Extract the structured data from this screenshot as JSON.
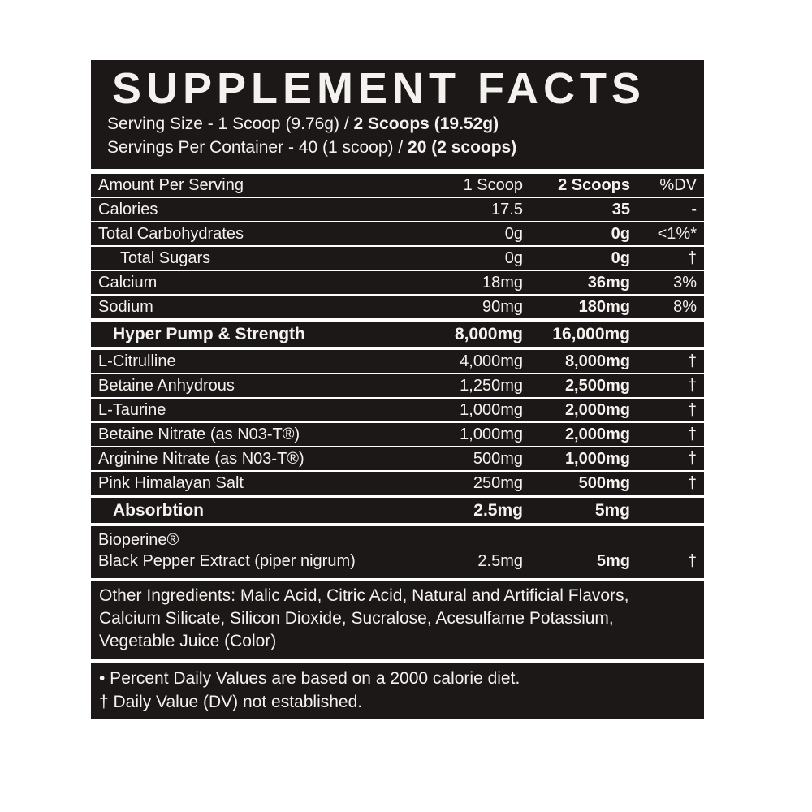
{
  "colors": {
    "panel": "#1c1818",
    "text": "#f4f2ee",
    "background": "#ffffff"
  },
  "label": {
    "title": "SUPPLEMENT FACTS",
    "serving_size_prefix": "Serving Size - 1 Scoop (9.76g) / ",
    "serving_size_bold": "2 Scoops (19.52g)",
    "servings_prefix": "Servings Per Container - 40 (1 scoop) / ",
    "servings_bold": "20 (2 scoops)",
    "columns": {
      "name": "Amount Per Serving",
      "scoop1": "1 Scoop",
      "scoop2": "2 Scoops",
      "dv": "%DV"
    },
    "nutrients": [
      {
        "name": "Calories",
        "scoop1": "17.5",
        "scoop2": "35",
        "dv": "-"
      },
      {
        "name": "Total Carbohydrates",
        "scoop1": "0g",
        "scoop2": "0g",
        "dv": "<1%*"
      },
      {
        "name": "Total Sugars",
        "scoop1": "0g",
        "scoop2": "0g",
        "dv": "†"
      },
      {
        "name": "Calcium",
        "scoop1": "18mg",
        "scoop2": "36mg",
        "dv": "3%"
      },
      {
        "name": "Sodium",
        "scoop1": "90mg",
        "scoop2": "180mg",
        "dv": "8%"
      }
    ],
    "blend1": {
      "name": "Hyper Pump & Strength",
      "scoop1": "8,000mg",
      "scoop2": "16,000mg",
      "dv": "",
      "rows": [
        {
          "name": "L-Citrulline",
          "scoop1": "4,000mg",
          "scoop2": "8,000mg",
          "dv": "†"
        },
        {
          "name": "Betaine Anhydrous",
          "scoop1": "1,250mg",
          "scoop2": "2,500mg",
          "dv": "†"
        },
        {
          "name": "L-Taurine",
          "scoop1": "1,000mg",
          "scoop2": "2,000mg",
          "dv": "†"
        },
        {
          "name": "Betaine Nitrate (as N03-T®)",
          "scoop1": "1,000mg",
          "scoop2": "2,000mg",
          "dv": "†"
        },
        {
          "name": "Arginine Nitrate (as N03-T®)",
          "scoop1": "500mg",
          "scoop2": "1,000mg",
          "dv": "†"
        },
        {
          "name": "Pink Himalayan Salt",
          "scoop1": "250mg",
          "scoop2": "500mg",
          "dv": "†"
        }
      ]
    },
    "blend2": {
      "name": "Absorbtion",
      "scoop1": "2.5mg",
      "scoop2": "5mg",
      "dv": "",
      "ingredient": {
        "line1": "Bioperine®",
        "line2": "Black Pepper Extract (piper nigrum)",
        "scoop1": "2.5mg",
        "scoop2": "5mg",
        "dv": "†"
      }
    },
    "other_ingredients": "Other Ingredients: Malic Acid, Citric Acid, Natural and Artificial Flavors, Calcium Silicate, Silicon Dioxide, Sucralose, Acesulfame Potassium, Vegetable Juice (Color)",
    "footnote1": "• Percent Daily Values are based on a 2000 calorie diet.",
    "footnote2": "† Daily Value (DV) not established."
  }
}
